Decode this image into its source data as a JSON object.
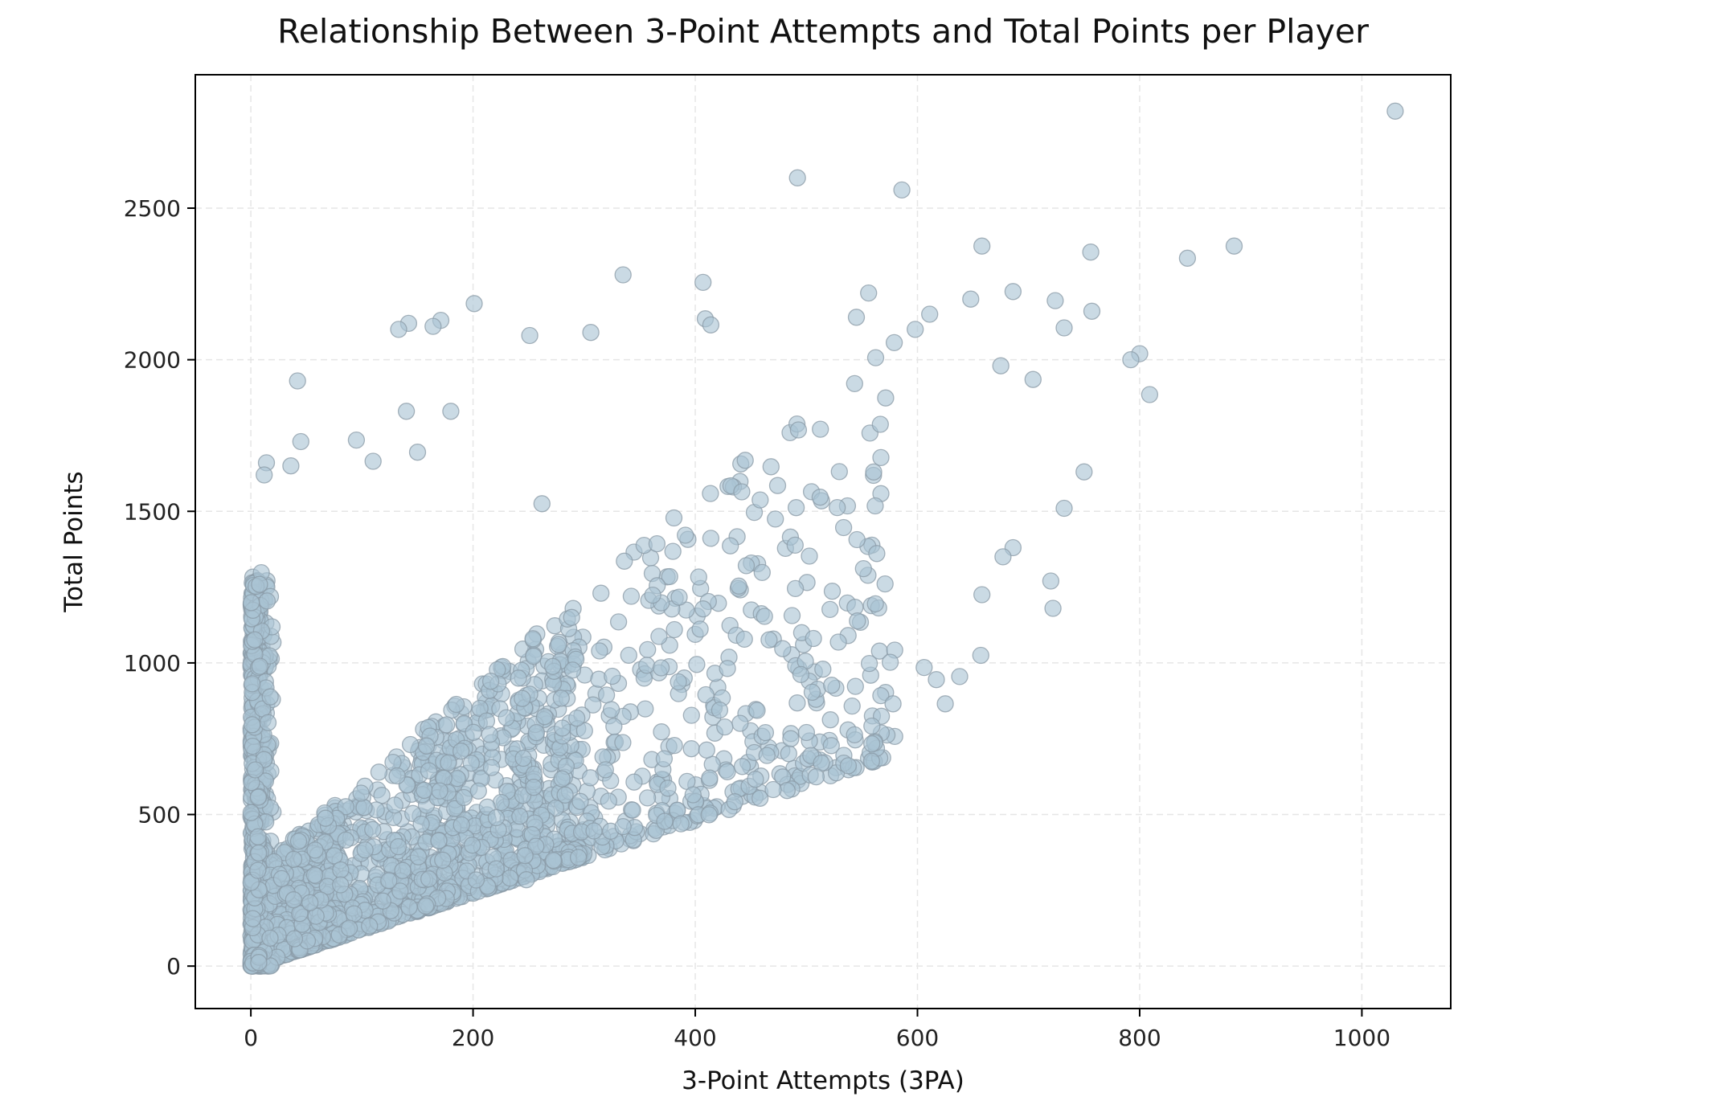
{
  "chart_data": {
    "type": "scatter",
    "title": "Relationship Between 3-Point Attempts and Total Points per Player",
    "xlabel": "3-Point Attempts (3PA)",
    "ylabel": "Total Points",
    "xlim": [
      -50,
      1080
    ],
    "ylim": [
      -140,
      2940
    ],
    "xticks": [
      0,
      200,
      400,
      600,
      800,
      1000
    ],
    "yticks": [
      0,
      500,
      1000,
      1500,
      2000,
      2500
    ],
    "grid": true,
    "legend": "none",
    "colors": {
      "marker_fill": "#a9c3d4",
      "marker_edge": "#8a9aa6",
      "grid": "#e6e6e6",
      "axes": "#000000"
    },
    "n_points_estimated": 2600,
    "outliers": [
      {
        "x": 1030,
        "y": 2820
      },
      {
        "x": 492,
        "y": 2600
      },
      {
        "x": 586,
        "y": 2560
      },
      {
        "x": 885,
        "y": 2375
      },
      {
        "x": 843,
        "y": 2335
      },
      {
        "x": 756,
        "y": 2355
      },
      {
        "x": 658,
        "y": 2375
      },
      {
        "x": 335,
        "y": 2280
      },
      {
        "x": 407,
        "y": 2255
      },
      {
        "x": 556,
        "y": 2220
      },
      {
        "x": 686,
        "y": 2225
      },
      {
        "x": 724,
        "y": 2195
      },
      {
        "x": 648,
        "y": 2200
      },
      {
        "x": 757,
        "y": 2160
      },
      {
        "x": 611,
        "y": 2150
      },
      {
        "x": 201,
        "y": 2185
      },
      {
        "x": 409,
        "y": 2135
      },
      {
        "x": 414,
        "y": 2115
      },
      {
        "x": 171,
        "y": 2130
      },
      {
        "x": 142,
        "y": 2120
      },
      {
        "x": 133,
        "y": 2100
      },
      {
        "x": 164,
        "y": 2110
      },
      {
        "x": 545,
        "y": 2140
      },
      {
        "x": 732,
        "y": 2105
      },
      {
        "x": 598,
        "y": 2100
      },
      {
        "x": 251,
        "y": 2080
      },
      {
        "x": 306,
        "y": 2090
      },
      {
        "x": 809,
        "y": 1885
      },
      {
        "x": 800,
        "y": 2020
      },
      {
        "x": 792,
        "y": 2000
      },
      {
        "x": 704,
        "y": 1935
      },
      {
        "x": 675,
        "y": 1980
      },
      {
        "x": 42,
        "y": 1930
      },
      {
        "x": 750,
        "y": 1630
      },
      {
        "x": 732,
        "y": 1510
      },
      {
        "x": 686,
        "y": 1380
      },
      {
        "x": 677,
        "y": 1350
      },
      {
        "x": 720,
        "y": 1270
      },
      {
        "x": 722,
        "y": 1180
      },
      {
        "x": 658,
        "y": 1225
      },
      {
        "x": 657,
        "y": 1025
      },
      {
        "x": 638,
        "y": 955
      },
      {
        "x": 625,
        "y": 865
      },
      {
        "x": 578,
        "y": 865
      },
      {
        "x": 617,
        "y": 945
      },
      {
        "x": 606,
        "y": 985
      },
      {
        "x": 14,
        "y": 1660
      },
      {
        "x": 12,
        "y": 1620
      },
      {
        "x": 36,
        "y": 1650
      },
      {
        "x": 45,
        "y": 1730
      },
      {
        "x": 95,
        "y": 1735
      },
      {
        "x": 110,
        "y": 1665
      },
      {
        "x": 150,
        "y": 1695
      },
      {
        "x": 180,
        "y": 1830
      },
      {
        "x": 140,
        "y": 1830
      },
      {
        "x": 262,
        "y": 1525
      },
      {
        "x": 248,
        "y": 285
      },
      {
        "x": 398,
        "y": 565
      },
      {
        "x": 486,
        "y": 750
      },
      {
        "x": 335,
        "y": 460
      }
    ],
    "bulk_description_hidden": true
  }
}
